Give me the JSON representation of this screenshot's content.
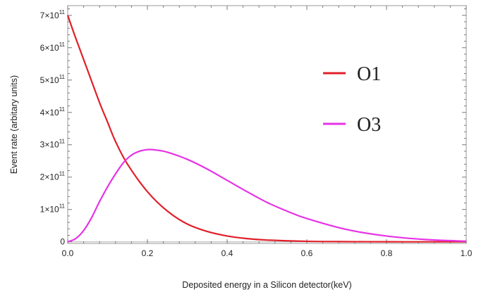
{
  "chart_data": {
    "type": "line",
    "title": "",
    "xlabel": "Deposited energy in a Silicon detector(keV)",
    "ylabel": "Event rate (arbitary units)",
    "xlim": [
      0,
      1.0
    ],
    "ylim": [
      -5000000000.0,
      730000000000.0
    ],
    "x_ticks": [
      0,
      0.2,
      0.4,
      0.6,
      0.8,
      1.0
    ],
    "x_tick_labels": [
      "0.0",
      "0.2",
      "0.4",
      "0.6",
      "0.8",
      "1.0"
    ],
    "y_ticks": [
      0,
      100000000000.0,
      200000000000.0,
      300000000000.0,
      400000000000.0,
      500000000000.0,
      600000000000.0,
      700000000000.0
    ],
    "y_tick_labels": [
      {
        "base": "0",
        "exp": ""
      },
      {
        "base": "1×10",
        "exp": "11"
      },
      {
        "base": "2×10",
        "exp": "11"
      },
      {
        "base": "3×10",
        "exp": "11"
      },
      {
        "base": "4×10",
        "exp": "11"
      },
      {
        "base": "5×10",
        "exp": "11"
      },
      {
        "base": "6×10",
        "exp": "11"
      },
      {
        "base": "7×10",
        "exp": "11"
      }
    ],
    "legend_position": "right",
    "series": [
      {
        "name": "O1",
        "color": "#e0202a",
        "x": [
          0,
          0.02,
          0.05,
          0.08,
          0.1,
          0.12,
          0.15,
          0.2,
          0.25,
          0.3,
          0.35,
          0.4,
          0.45,
          0.5,
          0.6,
          0.7,
          0.8,
          0.9,
          1.0
        ],
        "y": [
          700000000000.0,
          630000000000.0,
          530000000000.0,
          430000000000.0,
          370000000000.0,
          310000000000.0,
          240000000000.0,
          155000000000.0,
          95000000000.0,
          55000000000.0,
          32000000000.0,
          18000000000.0,
          10000000000.0,
          5500000000.0,
          1600000000.0,
          500000000.0,
          150000000.0,
          50000000.0,
          10000000.0
        ]
      },
      {
        "name": "O3",
        "color": "#e633e6",
        "x": [
          0,
          0.02,
          0.04,
          0.06,
          0.08,
          0.1,
          0.12,
          0.14,
          0.16,
          0.18,
          0.2,
          0.22,
          0.25,
          0.3,
          0.35,
          0.4,
          0.45,
          0.5,
          0.55,
          0.6,
          0.7,
          0.8,
          0.9,
          1.0
        ],
        "y": [
          0,
          10000000000.0,
          35000000000.0,
          75000000000.0,
          125000000000.0,
          170000000000.0,
          210000000000.0,
          245000000000.0,
          268000000000.0,
          280000000000.0,
          285000000000.0,
          284000000000.0,
          277000000000.0,
          255000000000.0,
          225000000000.0,
          190000000000.0,
          155000000000.0,
          122000000000.0,
          95000000000.0,
          72000000000.0,
          38000000000.0,
          18000000000.0,
          7000000000.0,
          2000000000.0
        ]
      }
    ]
  }
}
